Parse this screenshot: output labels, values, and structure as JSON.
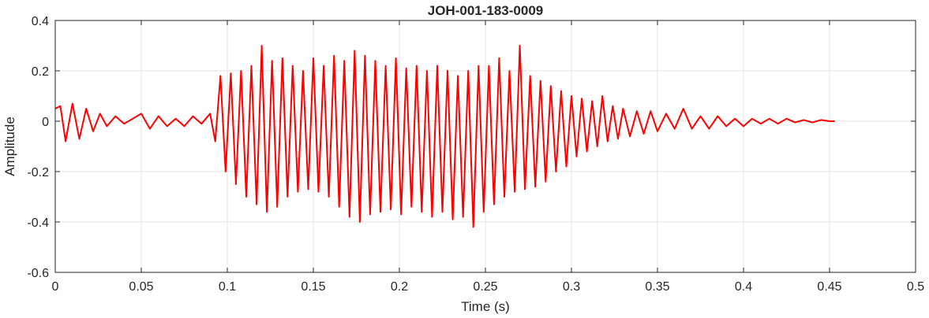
{
  "chart_data": {
    "type": "line",
    "title": "JOH-001-183-0009",
    "xlabel": "Time (s)",
    "ylabel": "Amplitude",
    "xlim": [
      0,
      0.5
    ],
    "ylim": [
      -0.6,
      0.4
    ],
    "xticks": [
      0,
      0.05,
      0.1,
      0.15,
      0.2,
      0.25,
      0.3,
      0.35,
      0.4,
      0.45,
      0.5
    ],
    "xtick_labels": [
      "0",
      "0.05",
      "0.1",
      "0.15",
      "0.2",
      "0.25",
      "0.3",
      "0.35",
      "0.4",
      "0.45",
      "0.5"
    ],
    "yticks": [
      -0.6,
      -0.4,
      -0.2,
      0,
      0.2,
      0.4
    ],
    "ytick_labels": [
      "-0.6",
      "-0.4",
      "-0.2",
      "0",
      "0.2",
      "0.4"
    ],
    "grid": true,
    "series": [
      {
        "color": "#ff0000",
        "x": [
          0,
          0.003,
          0.006,
          0.01,
          0.014,
          0.018,
          0.022,
          0.026,
          0.03,
          0.035,
          0.04,
          0.045,
          0.05,
          0.055,
          0.06,
          0.065,
          0.07,
          0.075,
          0.08,
          0.085,
          0.09,
          0.093,
          0.096,
          0.099,
          0.102,
          0.105,
          0.108,
          0.111,
          0.114,
          0.117,
          0.12,
          0.123,
          0.126,
          0.129,
          0.132,
          0.135,
          0.138,
          0.141,
          0.144,
          0.147,
          0.15,
          0.153,
          0.156,
          0.159,
          0.162,
          0.165,
          0.168,
          0.171,
          0.174,
          0.177,
          0.18,
          0.183,
          0.186,
          0.189,
          0.192,
          0.195,
          0.198,
          0.201,
          0.204,
          0.207,
          0.21,
          0.213,
          0.216,
          0.219,
          0.222,
          0.225,
          0.228,
          0.231,
          0.234,
          0.237,
          0.24,
          0.243,
          0.246,
          0.249,
          0.252,
          0.255,
          0.258,
          0.261,
          0.264,
          0.267,
          0.27,
          0.273,
          0.276,
          0.279,
          0.282,
          0.285,
          0.288,
          0.291,
          0.294,
          0.297,
          0.3,
          0.303,
          0.306,
          0.309,
          0.312,
          0.315,
          0.318,
          0.321,
          0.324,
          0.327,
          0.33,
          0.334,
          0.338,
          0.342,
          0.346,
          0.35,
          0.355,
          0.36,
          0.365,
          0.37,
          0.375,
          0.38,
          0.385,
          0.39,
          0.395,
          0.4,
          0.405,
          0.41,
          0.415,
          0.42,
          0.425,
          0.43,
          0.435,
          0.44,
          0.445,
          0.45,
          0.453
        ],
        "y": [
          0.05,
          0.06,
          -0.08,
          0.07,
          -0.07,
          0.05,
          -0.04,
          0.03,
          -0.02,
          0.02,
          -0.01,
          0.01,
          0.03,
          -0.03,
          0.02,
          -0.02,
          0.01,
          -0.02,
          0.02,
          -0.01,
          0.03,
          -0.08,
          0.18,
          -0.2,
          0.19,
          -0.25,
          0.2,
          -0.3,
          0.22,
          -0.33,
          0.3,
          -0.36,
          0.24,
          -0.34,
          0.25,
          -0.3,
          0.22,
          -0.28,
          0.2,
          -0.27,
          0.25,
          -0.28,
          0.22,
          -0.3,
          0.26,
          -0.34,
          0.24,
          -0.38,
          0.28,
          -0.4,
          0.26,
          -0.37,
          0.24,
          -0.36,
          0.22,
          -0.35,
          0.25,
          -0.37,
          0.21,
          -0.34,
          0.22,
          -0.36,
          0.2,
          -0.38,
          0.22,
          -0.36,
          0.2,
          -0.39,
          0.18,
          -0.38,
          0.2,
          -0.42,
          0.22,
          -0.36,
          0.22,
          -0.33,
          0.25,
          -0.3,
          0.2,
          -0.28,
          0.3,
          -0.27,
          0.18,
          -0.26,
          0.16,
          -0.24,
          0.14,
          -0.2,
          0.12,
          -0.18,
          0.1,
          -0.14,
          0.09,
          -0.12,
          0.08,
          -0.1,
          0.1,
          -0.08,
          0.06,
          -0.07,
          0.05,
          -0.06,
          0.04,
          -0.05,
          0.04,
          -0.04,
          0.03,
          -0.03,
          0.05,
          -0.03,
          0.02,
          -0.03,
          0.02,
          -0.02,
          0.01,
          -0.02,
          0.01,
          -0.01,
          0.01,
          -0.01,
          0.01,
          -0.005,
          0.005,
          -0.005,
          0.005,
          0.0,
          0.0
        ]
      }
    ]
  }
}
